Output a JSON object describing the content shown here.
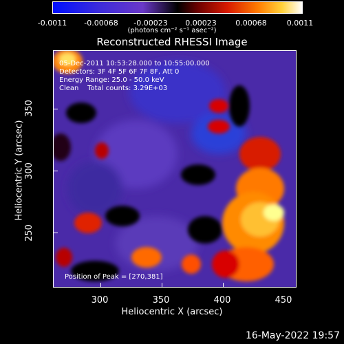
{
  "colorbar": {
    "ticks": [
      "-0.0011",
      "-0.00068",
      "-0.00023",
      "0.00023",
      "0.00068",
      "0.0011"
    ],
    "unit": "(photons cm⁻² s⁻¹ asec⁻²)"
  },
  "title": "Reconstructed RHESSI Image",
  "info": {
    "line1": "05-Dec-2011 10:53:28.000 to 10:55:00.000",
    "line2": "Detectors: 3F 4F 5F 6F 7F 8F, Att 0",
    "line3": "Energy Range: 25.0 - 50.0 keV",
    "line4": "Clean    Total counts: 3.29E+03",
    "peak": "Position of Peak = [270,381]"
  },
  "axes": {
    "xlabel": "Heliocentric X (arcsec)",
    "ylabel": "Heliocentric Y (arcsec)",
    "xticks": [
      "300",
      "350",
      "400",
      "450"
    ],
    "yticks": [
      "250",
      "300",
      "350"
    ],
    "xrange": [
      262,
      452
    ],
    "yrange": [
      198,
      388
    ]
  },
  "timestamp": "16-May-2022 19:57"
}
